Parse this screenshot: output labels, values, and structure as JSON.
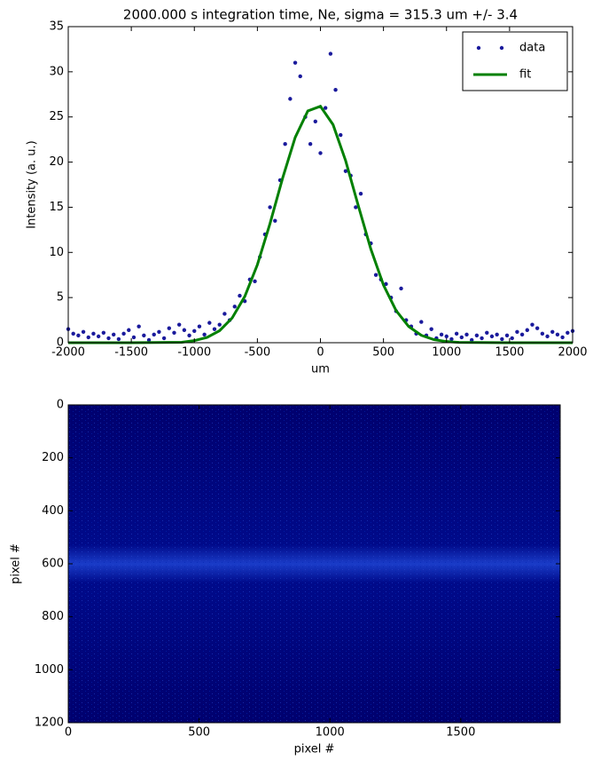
{
  "chart_data": [
    {
      "type": "scatter",
      "title": "2000.000 s integration time, Ne, sigma = 315.3 um +/- 3.4",
      "xlabel": "um",
      "ylabel": "Intensity (a. u.)",
      "xlim": [
        -2000,
        2000
      ],
      "ylim": [
        0,
        35
      ],
      "xticks": [
        -2000,
        -1500,
        -1000,
        -500,
        0,
        500,
        1000,
        1500,
        2000
      ],
      "yticks": [
        0,
        5,
        10,
        15,
        20,
        25,
        30,
        35
      ],
      "legend": "upper right",
      "series": [
        {
          "name": "data",
          "kind": "scatter",
          "color": "#1a1a9c",
          "x": [
            -2000,
            -1960,
            -1920,
            -1880,
            -1840,
            -1800,
            -1760,
            -1720,
            -1680,
            -1640,
            -1600,
            -1560,
            -1520,
            -1480,
            -1440,
            -1400,
            -1360,
            -1320,
            -1280,
            -1240,
            -1200,
            -1160,
            -1120,
            -1080,
            -1040,
            -1000,
            -960,
            -920,
            -880,
            -840,
            -800,
            -760,
            -720,
            -680,
            -640,
            -600,
            -560,
            -520,
            -480,
            -440,
            -400,
            -360,
            -320,
            -280,
            -240,
            -200,
            -160,
            -120,
            -80,
            -40,
            0,
            40,
            80,
            120,
            160,
            200,
            240,
            280,
            320,
            360,
            400,
            440,
            480,
            520,
            560,
            600,
            640,
            680,
            720,
            760,
            800,
            840,
            880,
            920,
            960,
            1000,
            1040,
            1080,
            1120,
            1160,
            1200,
            1240,
            1280,
            1320,
            1360,
            1400,
            1440,
            1480,
            1520,
            1560,
            1600,
            1640,
            1680,
            1720,
            1760,
            1800,
            1840,
            1880,
            1920,
            1960,
            2000
          ],
          "values": [
            1.5,
            1.0,
            0.8,
            1.2,
            0.6,
            1.0,
            0.7,
            1.1,
            0.5,
            0.9,
            0.4,
            1.0,
            1.4,
            0.6,
            1.8,
            0.8,
            0.3,
            0.9,
            1.2,
            0.5,
            1.6,
            1.1,
            2.0,
            1.4,
            0.8,
            1.3,
            1.8,
            0.9,
            2.2,
            1.5,
            2.0,
            3.2,
            2.5,
            4.0,
            5.2,
            4.6,
            7.0,
            6.8,
            9.5,
            12.0,
            15.0,
            13.5,
            18.0,
            22.0,
            27.0,
            31.0,
            29.5,
            25.0,
            22.0,
            24.5,
            21.0,
            26.0,
            32.0,
            28.0,
            23.0,
            19.0,
            18.5,
            15.0,
            16.5,
            12.0,
            11.0,
            7.5,
            7.0,
            6.5,
            5.0,
            3.5,
            6.0,
            2.5,
            1.8,
            1.0,
            2.3,
            0.8,
            1.5,
            0.5,
            0.9,
            0.7,
            0.4,
            1.0,
            0.6,
            0.9,
            0.3,
            0.8,
            0.5,
            1.1,
            0.7,
            0.9,
            0.4,
            0.8,
            0.5,
            1.2,
            0.9,
            1.4,
            2.0,
            1.6,
            1.0,
            0.7,
            1.2,
            0.9,
            0.6,
            1.1,
            1.3
          ]
        },
        {
          "name": "fit",
          "kind": "line",
          "color": "#008000",
          "x": [
            -2000,
            -1500,
            -1100,
            -1000,
            -900,
            -800,
            -700,
            -600,
            -500,
            -400,
            -300,
            -200,
            -100,
            0,
            100,
            200,
            300,
            400,
            500,
            600,
            700,
            800,
            900,
            1000,
            1100,
            1500,
            2000
          ],
          "values": [
            0,
            0,
            0.05,
            0.23,
            0.58,
            1.33,
            2.74,
            5.12,
            8.64,
            13.19,
            18.22,
            22.74,
            25.66,
            26.18,
            24.15,
            20.15,
            15.19,
            10.36,
            6.39,
            3.56,
            1.79,
            0.82,
            0.34,
            0.13,
            0.04,
            0,
            0
          ]
        }
      ]
    },
    {
      "type": "image",
      "xlabel": "pixel #",
      "ylabel": "pixel #",
      "xlim": [
        0,
        1880
      ],
      "ylim": [
        1200,
        0
      ],
      "xticks": [
        0,
        500,
        1000,
        1500
      ],
      "yticks": [
        0,
        200,
        400,
        600,
        800,
        1000,
        1200
      ]
    }
  ]
}
